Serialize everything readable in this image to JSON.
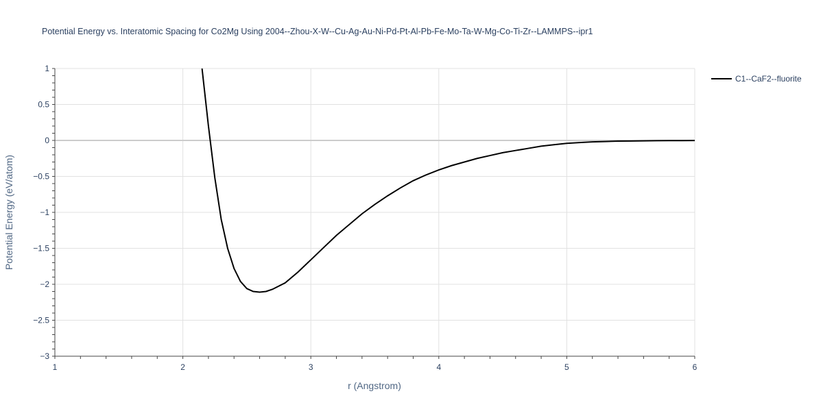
{
  "chart_data": {
    "type": "line",
    "title": "Potential Energy vs. Interatomic Spacing for Co2Mg Using 2004--Zhou-X-W--Cu-Ag-Au-Ni-Pd-Pt-Al-Pb-Fe-Mo-Ta-W-Mg-Co-Ti-Zr--LAMMPS--ipr1",
    "xlabel": "r (Angstrom)",
    "ylabel": "Potential Energy (eV/atom)",
    "xlim": [
      1,
      6
    ],
    "ylim": [
      -3,
      1
    ],
    "x_ticks": [
      "1",
      "2",
      "3",
      "4",
      "5",
      "6"
    ],
    "y_ticks": [
      "1",
      "0.5",
      "0",
      "−0.5",
      "−1",
      "−1.5",
      "−2",
      "−2.5",
      "−3"
    ],
    "grid": true,
    "legend_position": "top-right",
    "series": [
      {
        "name": "C1--CaF2--fluorite",
        "color": "#000000",
        "x": [
          2.15,
          2.2,
          2.25,
          2.3,
          2.35,
          2.4,
          2.45,
          2.5,
          2.55,
          2.6,
          2.65,
          2.7,
          2.8,
          2.9,
          3.0,
          3.1,
          3.2,
          3.3,
          3.4,
          3.5,
          3.6,
          3.7,
          3.8,
          3.9,
          4.0,
          4.1,
          4.2,
          4.3,
          4.4,
          4.5,
          4.6,
          4.7,
          4.8,
          4.9,
          5.0,
          5.1,
          5.2,
          5.3,
          5.4,
          5.5,
          5.6,
          5.7,
          5.8,
          5.9,
          6.0
        ],
        "y": [
          1.0,
          0.2,
          -0.52,
          -1.1,
          -1.5,
          -1.78,
          -1.96,
          -2.06,
          -2.1,
          -2.11,
          -2.1,
          -2.07,
          -1.98,
          -1.83,
          -1.66,
          -1.49,
          -1.32,
          -1.17,
          -1.02,
          -0.89,
          -0.77,
          -0.66,
          -0.56,
          -0.48,
          -0.41,
          -0.35,
          -0.3,
          -0.25,
          -0.21,
          -0.17,
          -0.14,
          -0.11,
          -0.08,
          -0.06,
          -0.04,
          -0.03,
          -0.02,
          -0.015,
          -0.01,
          -0.008,
          -0.006,
          -0.004,
          -0.003,
          -0.002,
          -0.001
        ]
      }
    ]
  }
}
